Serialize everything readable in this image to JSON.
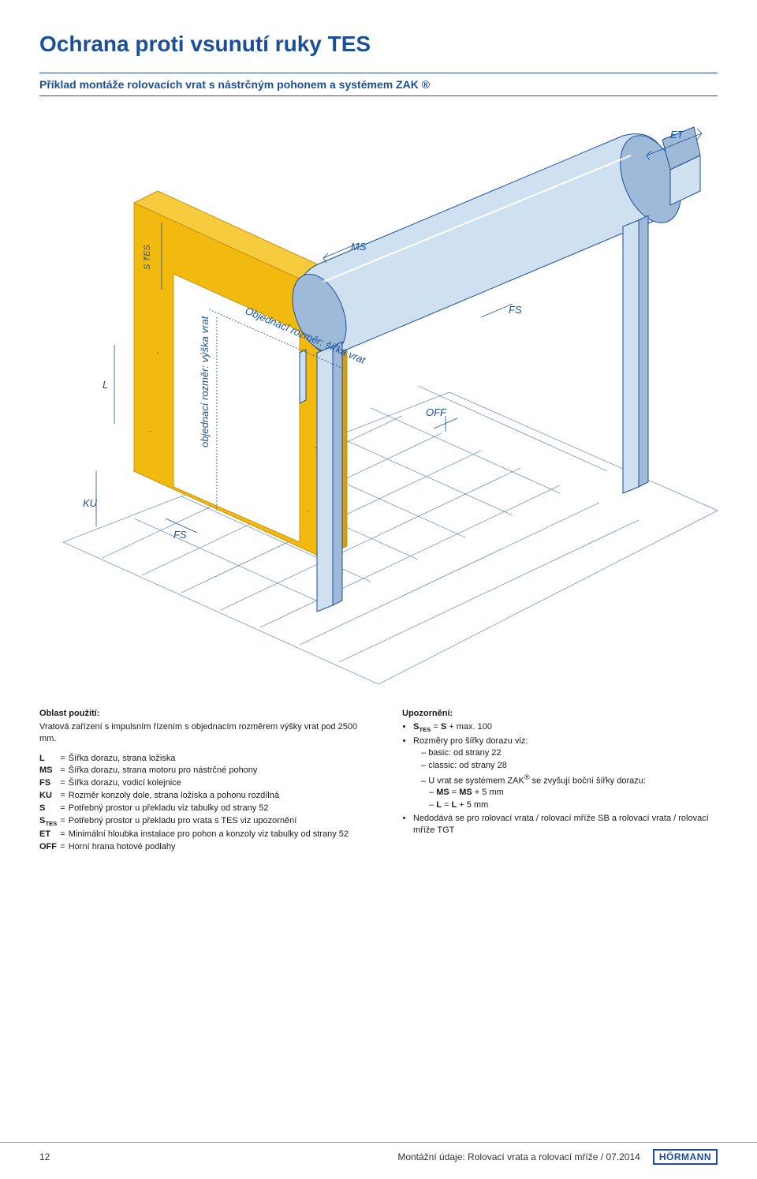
{
  "title": "Ochrana proti vsunutí ruky TES",
  "subtitle": "Příklad montáže rolovacích vrat s nástrčným pohonem a systémem ZAK ®",
  "diagram": {
    "type": "isometric-technical-drawing",
    "labels": {
      "ET": "ET",
      "MS": "MS",
      "FS1": "FS",
      "FS2": "FS",
      "OFF": "OFF",
      "L": "L",
      "KU": "KU",
      "STES": "S TES",
      "width_label": "Objednací rozměr: šířka vrat",
      "height_label": "objednací rozměr: výška vrat"
    },
    "colors": {
      "wall_fill": "#f2b90f",
      "wall_stroke": "#c9930a",
      "metal_fill": "#cfe0f0",
      "metal_stroke": "#1a4f9c",
      "metal_dark": "#9fbad8",
      "floor_stroke": "#1a4f9c",
      "dim_stroke": "#1a4f9c",
      "background": "#ffffff"
    },
    "aspect": "860x720"
  },
  "usage": {
    "title": "Oblast použití:",
    "text": "Vratová zařízení s impulsním řízením s objednacím rozměrem výšky vrat pod 2500 mm."
  },
  "legend": [
    {
      "key": "L",
      "desc": "Šířka dorazu, strana ložiska"
    },
    {
      "key": "MS",
      "desc": "Šířka dorazu, strana motoru pro nástrčné pohony"
    },
    {
      "key": "FS",
      "desc": "Šířka dorazu, vodicí kolejnice"
    },
    {
      "key": "KU",
      "desc": "Rozměr konzoly dole, strana ložiska a pohonu rozdílná"
    },
    {
      "key": "S",
      "desc": "Potřebný prostor u překladu viz tabulky od strany 52"
    },
    {
      "key": "S_TES",
      "desc": "Potřebný prostor u překladu pro vrata s TES viz upozornění"
    },
    {
      "key": "ET",
      "desc": "Minimální hloubka instalace pro pohon a konzoly viz tabulky od strany 52"
    },
    {
      "key": "OFF",
      "desc": "Horní hrana hotové podlahy"
    }
  ],
  "notice": {
    "title": "Upozornění:",
    "items": [
      {
        "html": "<b>S<sub>TES</sub></b> = <b>S</b> + max. 100"
      },
      {
        "text": "Rozměry pro šířky dorazu viz:",
        "sub": [
          "basic: od strany 22",
          "classic: od strany 28",
          {
            "html": "U vrat se systémem ZAK<sup>®</sup> se zvyšují boční šířky dorazu:",
            "sub": [
              {
                "html": "<b>MS</b> = <b>MS</b> + 5 mm"
              },
              {
                "html": "<b>L</b> = <b>L</b> + 5 mm"
              }
            ]
          }
        ]
      },
      {
        "html": "Nedodává se pro rolovací vrata / rolovací mříže SB a rolovací vrata / rolovací mříže TGT"
      }
    ]
  },
  "footer": {
    "page": "12",
    "doc": "Montážní údaje: Rolovací vrata a rolovací mříže / 07.2014",
    "brand": "HÖRMANN"
  }
}
